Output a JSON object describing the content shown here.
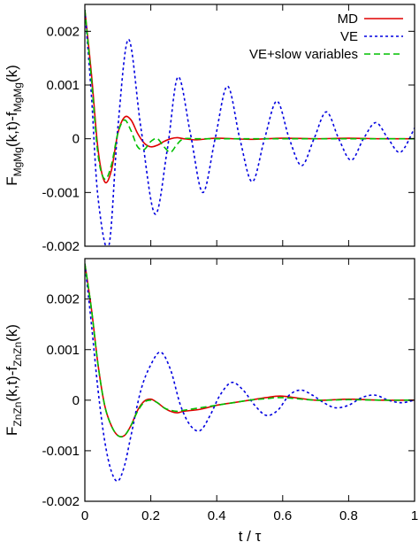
{
  "chart_data": [
    {
      "type": "line",
      "ylabel_main": "F",
      "ylabel_main_sub": "MgMg",
      "ylabel_rest": "(k,t)-f",
      "ylabel_rest_sub": "MgMg",
      "ylabel_tail": "(k)",
      "xlim": [
        0,
        1
      ],
      "ylim": [
        -0.002,
        0.0025
      ],
      "yticks": [
        -0.002,
        -0.001,
        0,
        0.001,
        0.002
      ],
      "ytick_labels": [
        "-0.002",
        "-0.001",
        "0",
        "0.001",
        "0.002"
      ],
      "legend_position": "top-right",
      "series": [
        {
          "name": "MD",
          "color": "#e00000",
          "dash": "solid",
          "x": [
            0,
            0.02,
            0.04,
            0.06,
            0.08,
            0.1,
            0.12,
            0.14,
            0.16,
            0.18,
            0.2,
            0.22,
            0.24,
            0.26,
            0.28,
            0.3,
            0.34,
            0.4,
            0.5,
            0.6,
            0.7,
            0.8,
            0.9,
            1.0
          ],
          "y": [
            0.0024,
            0.0012,
            -0.0002,
            -0.0008,
            -0.0006,
            0.0001,
            0.0004,
            0.00035,
            0.0001,
            -8e-05,
            -0.00015,
            -0.00012,
            -5e-05,
            0,
            2e-05,
            0,
            -2e-05,
            1e-05,
            -1e-05,
            1e-05,
            0,
            1e-05,
            0,
            0
          ]
        },
        {
          "name": "VE",
          "color": "#0000e0",
          "dash": "dotted",
          "x": [
            0,
            0.02,
            0.04,
            0.0725,
            0.1,
            0.1325,
            0.17,
            0.2125,
            0.25,
            0.2825,
            0.32,
            0.3575,
            0.395,
            0.4325,
            0.47,
            0.5075,
            0.545,
            0.5825,
            0.62,
            0.6575,
            0.695,
            0.7325,
            0.77,
            0.8075,
            0.845,
            0.8825,
            0.92,
            0.9575,
            1.0
          ],
          "y": [
            0.0024,
            0.0008,
            -0.0011,
            -0.002,
            0.0002,
            0.00185,
            0.0002,
            -0.0014,
            -0.0002,
            0.00115,
            0.0001,
            -0.001,
            0,
            0.00098,
            0,
            -0.0008,
            0,
            0.0007,
            0,
            -0.0005,
            0,
            0.0005,
            0,
            -0.0004,
            0,
            0.0003,
            0,
            -0.00025,
            0.0002
          ]
        },
        {
          "name": "VE+slow variables",
          "color": "#00c000",
          "dash": "dashed",
          "x": [
            0,
            0.02,
            0.04,
            0.06,
            0.08,
            0.1,
            0.12,
            0.14,
            0.16,
            0.18,
            0.2,
            0.22,
            0.24,
            0.26,
            0.28,
            0.3,
            0.34,
            0.4,
            0.5,
            0.6,
            0.7,
            0.8,
            0.9,
            1.0
          ],
          "y": [
            0.0024,
            0.0011,
            -0.0003,
            -0.00075,
            -0.0005,
            0.0001,
            0.00035,
            0.00015,
            -0.00015,
            -0.0002,
            -5e-05,
            0,
            -0.00015,
            -0.00025,
            -0.0001,
            0,
            0,
            0,
            0,
            0,
            0,
            0,
            0,
            0
          ]
        }
      ]
    },
    {
      "type": "line",
      "ylabel_main": "F",
      "ylabel_main_sub": "ZnZn",
      "ylabel_rest": "(k,t)-f",
      "ylabel_rest_sub": "ZnZn",
      "ylabel_tail": "(k)",
      "xlabel": "t / τ",
      "xlim": [
        0,
        1
      ],
      "xticks": [
        0,
        0.2,
        0.4,
        0.6,
        0.8,
        1
      ],
      "xtick_labels": [
        "0",
        "0.2",
        "0.4",
        "0.6",
        "0.8",
        "1"
      ],
      "ylim": [
        -0.002,
        0.0028
      ],
      "yticks": [
        -0.002,
        -0.001,
        0,
        0.001,
        0.002
      ],
      "ytick_labels": [
        "-0.002",
        "-0.001",
        "0",
        "0.001",
        "0.002"
      ],
      "series": [
        {
          "name": "MD",
          "color": "#e00000",
          "dash": "solid",
          "x": [
            0,
            0.02,
            0.04,
            0.06,
            0.08,
            0.1,
            0.12,
            0.14,
            0.16,
            0.18,
            0.2,
            0.22,
            0.24,
            0.26,
            0.28,
            0.3,
            0.35,
            0.4,
            0.45,
            0.5,
            0.55,
            0.6,
            0.7,
            0.8,
            0.9,
            1.0
          ],
          "y": [
            0.0027,
            0.0018,
            0.0007,
            -0.0001,
            -0.0005,
            -0.0007,
            -0.0007,
            -0.0005,
            -0.0002,
            -2e-05,
            2e-05,
            -5e-05,
            -0.00015,
            -0.00022,
            -0.00025,
            -0.00022,
            -0.00018,
            -0.0001,
            -5e-05,
            0,
            5e-05,
            8e-05,
            0,
            2e-05,
            0,
            0
          ]
        },
        {
          "name": "VE",
          "color": "#0000e0",
          "dash": "dotted",
          "x": [
            0,
            0.02,
            0.04,
            0.06,
            0.08,
            0.1,
            0.12,
            0.14,
            0.17,
            0.2,
            0.23,
            0.26,
            0.29,
            0.32,
            0.35,
            0.38,
            0.41,
            0.445,
            0.48,
            0.515,
            0.55,
            0.585,
            0.62,
            0.655,
            0.69,
            0.725,
            0.76,
            0.8,
            0.84,
            0.88,
            0.92,
            0.96,
            1.0
          ],
          "y": [
            0.0027,
            0.0015,
            0.0002,
            -0.0008,
            -0.0014,
            -0.0016,
            -0.0013,
            -0.0007,
            0.0002,
            0.0007,
            0.00095,
            0.0006,
            -0.0001,
            -0.0005,
            -0.0006,
            -0.0003,
            0.0001,
            0.00035,
            0.0002,
            -0.0001,
            -0.0003,
            -0.0002,
            0.0001,
            0.0002,
            0.0001,
            -5e-05,
            -0.00015,
            -0.0001,
            5e-05,
            0.0001,
            0,
            -5e-05,
            0
          ]
        },
        {
          "name": "VE+slow variables",
          "color": "#00c000",
          "dash": "dashed",
          "x": [
            0,
            0.02,
            0.04,
            0.06,
            0.08,
            0.1,
            0.12,
            0.14,
            0.16,
            0.18,
            0.2,
            0.22,
            0.24,
            0.26,
            0.28,
            0.3,
            0.35,
            0.4,
            0.45,
            0.5,
            0.55,
            0.6,
            0.7,
            0.8,
            0.9,
            1.0
          ],
          "y": [
            0.0027,
            0.0018,
            0.0007,
            -0.0001,
            -0.0005,
            -0.0007,
            -0.0007,
            -0.0005,
            -0.00022,
            -4e-05,
            0,
            -5e-05,
            -0.00015,
            -0.0002,
            -0.00022,
            -0.0002,
            -0.00015,
            -0.0001,
            -5e-05,
            0,
            3e-05,
            5e-05,
            0,
            1e-05,
            0,
            0
          ]
        }
      ]
    }
  ]
}
